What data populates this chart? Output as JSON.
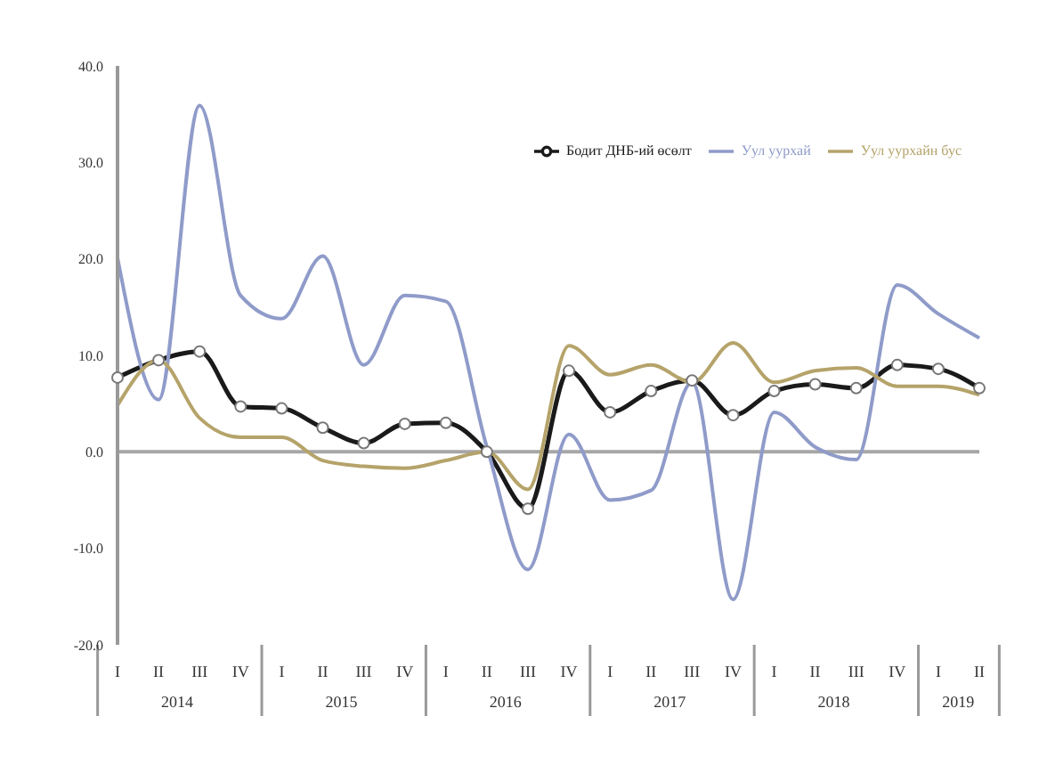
{
  "chart_data": {
    "type": "line",
    "categories": [
      "I",
      "II",
      "III",
      "IV",
      "I",
      "II",
      "III",
      "IV",
      "I",
      "II",
      "III",
      "IV",
      "I",
      "II",
      "III",
      "IV",
      "I",
      "II",
      "III",
      "IV",
      "I",
      "II"
    ],
    "series": [
      {
        "name": "Бодит ДНБ-ий өсөлт",
        "color": "#1a1a1a",
        "marker": "circle",
        "values": [
          7.7,
          9.5,
          10.4,
          4.7,
          4.5,
          2.5,
          0.9,
          2.9,
          3.0,
          0.0,
          -5.9,
          8.4,
          4.1,
          6.3,
          7.4,
          3.8,
          6.3,
          7.0,
          6.6,
          9.0,
          8.6,
          6.6
        ]
      },
      {
        "name": "Уул уурхай",
        "color": "#8f9bc9",
        "marker": "none",
        "values": [
          20.1,
          5.4,
          35.9,
          16.2,
          13.8,
          20.3,
          9.0,
          16.2,
          15.6,
          0.5,
          -12.2,
          1.8,
          -5.0,
          -4.0,
          7.2,
          -15.3,
          4.1,
          0.5,
          -0.8,
          17.3,
          14.3,
          11.8
        ]
      },
      {
        "name": "Уул уурхайн бус",
        "color": "#b5a36a",
        "marker": "none",
        "values": [
          4.8,
          9.5,
          3.5,
          1.5,
          1.5,
          -0.9,
          -1.5,
          -1.7,
          -0.9,
          0.0,
          -3.9,
          11.0,
          8.0,
          9.0,
          7.2,
          11.3,
          7.2,
          8.4,
          8.7,
          6.8,
          6.8,
          5.9
        ]
      }
    ],
    "annotations": [
      "2014",
      "2015",
      "2016",
      "2017",
      "2018",
      "2019"
    ],
    "ylim": [
      -20,
      40
    ],
    "yticks": [
      {
        "value": -20,
        "label": "-20.0"
      },
      {
        "value": -10,
        "label": "-10.0"
      },
      {
        "value": 0,
        "label": "0.0"
      },
      {
        "value": 10,
        "label": "10.0"
      },
      {
        "value": 20,
        "label": "20.0"
      },
      {
        "value": 30,
        "label": "30.0"
      },
      {
        "value": 40,
        "label": "40.0"
      }
    ],
    "ref_lines": [
      {
        "axis": "y",
        "value": 0,
        "color": "#a6a6a6"
      }
    ],
    "grid": false,
    "legend": "top right",
    "line_style": "solid"
  }
}
